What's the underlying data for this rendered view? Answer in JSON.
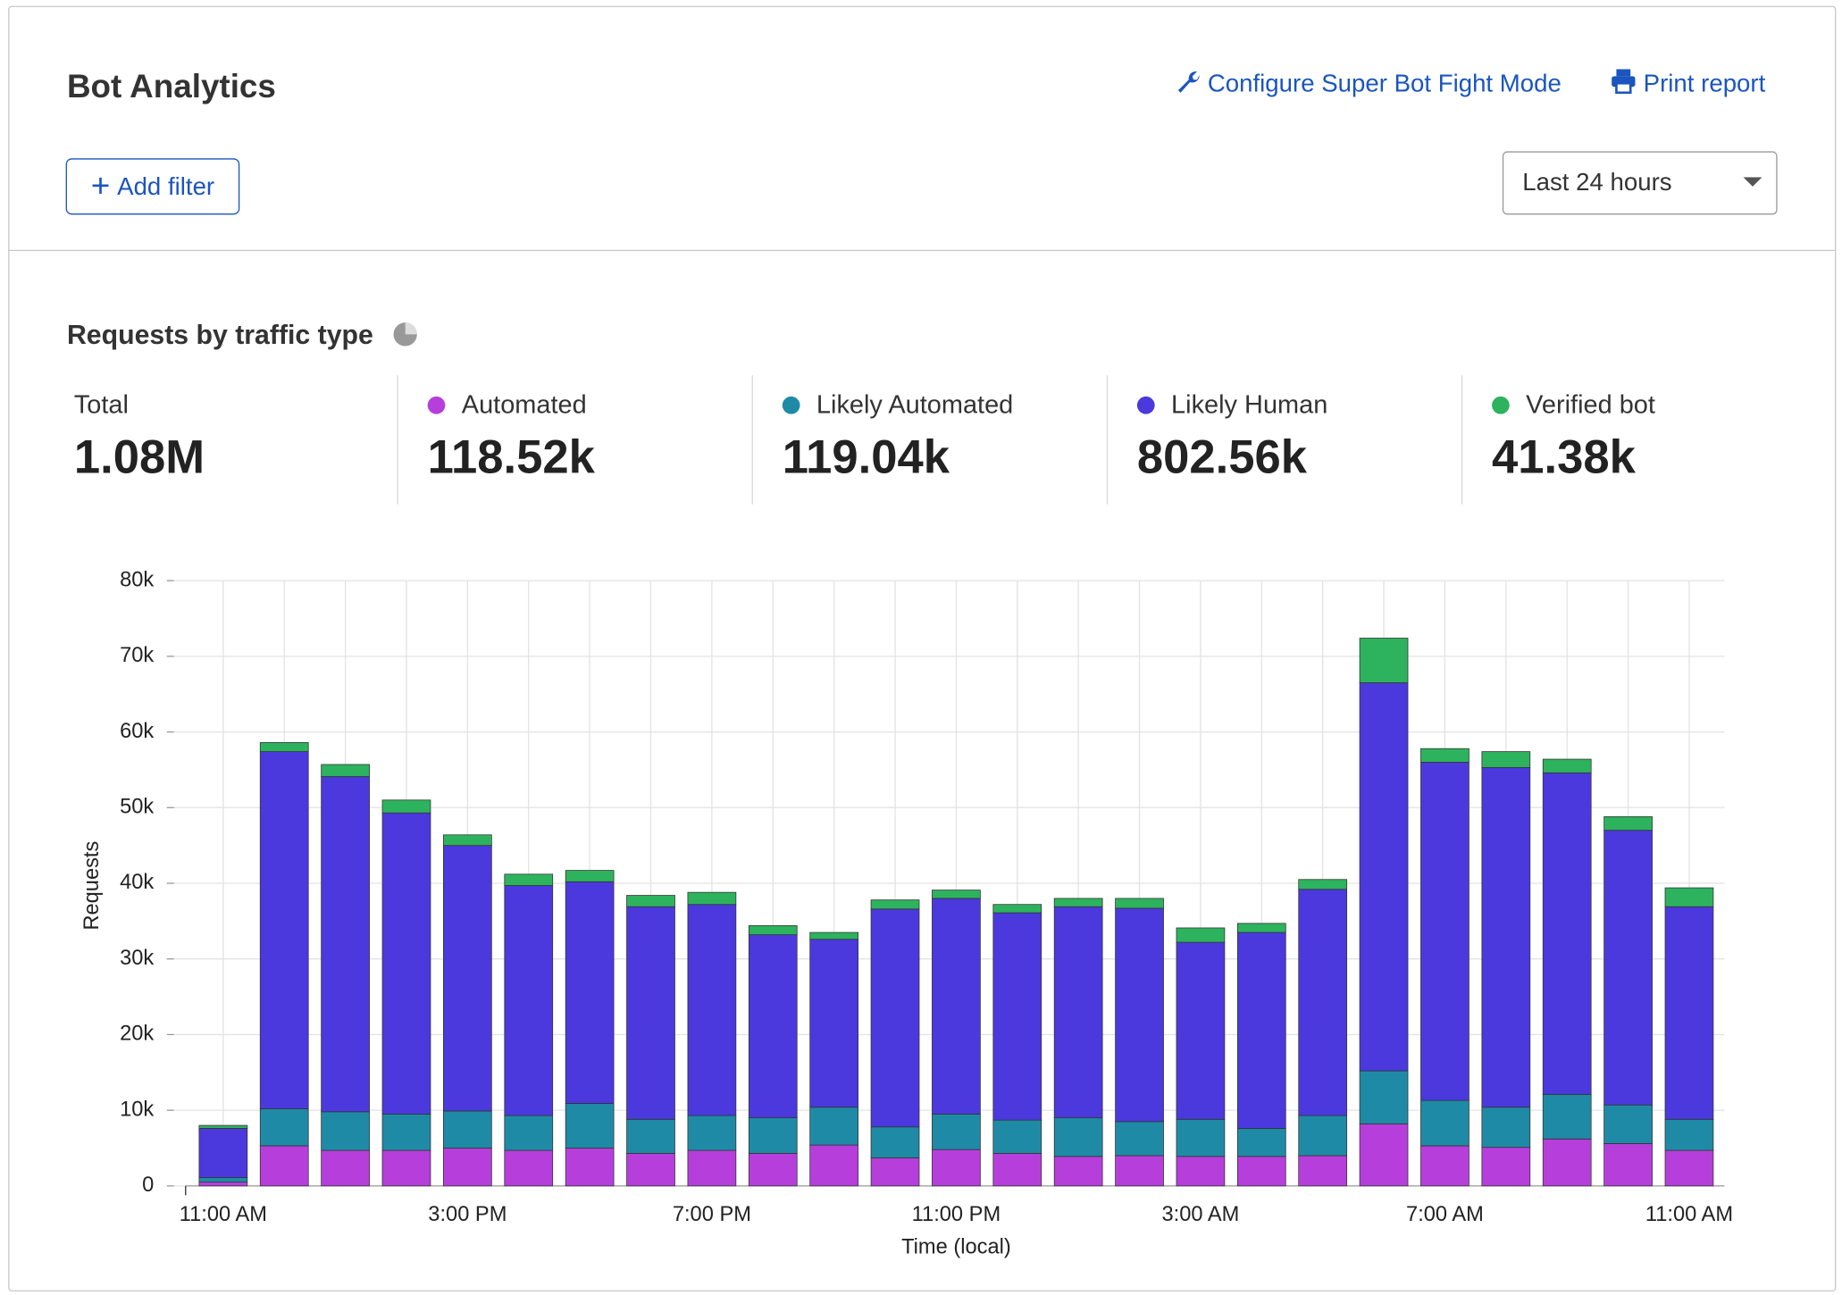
{
  "header": {
    "title": "Bot Analytics",
    "configure_link": "Configure Super Bot Fight Mode",
    "print_link": "Print report",
    "add_filter": "Add filter",
    "time_range": "Last 24 hours"
  },
  "summary": {
    "total_label": "Total",
    "total": "1.08M",
    "series_totals": [
      "118.52k",
      "119.04k",
      "802.56k",
      "41.38k"
    ]
  },
  "chart_data": {
    "type": "stacked_bar",
    "title": "Requests by traffic type",
    "x_label": "Time (local)",
    "y_label": "Requests",
    "categories": [
      "11:00 AM",
      null,
      null,
      null,
      "3:00 PM",
      null,
      null,
      null,
      "7:00 PM",
      null,
      null,
      null,
      "11:00 PM",
      null,
      null,
      null,
      "3:00 AM",
      null,
      null,
      null,
      "7:00 AM",
      null,
      null,
      null,
      "11:00 AM"
    ],
    "series": [
      {
        "name": "Automated",
        "color": "#b63fdc",
        "values": [
          500,
          5300,
          4700,
          4700,
          5000,
          4700,
          5000,
          4300,
          4700,
          4300,
          5400,
          3700,
          4800,
          4300,
          3900,
          4000,
          3900,
          3900,
          4000,
          8200,
          5300,
          5100,
          6200,
          5600,
          4700
        ]
      },
      {
        "name": "Likely Automated",
        "color": "#1f8aa6",
        "values": [
          600,
          4900,
          5100,
          4800,
          4900,
          4600,
          5900,
          4500,
          4600,
          4700,
          5000,
          4100,
          4700,
          4400,
          5100,
          4500,
          4900,
          3700,
          5300,
          7000,
          6000,
          5300,
          5900,
          5100,
          4100
        ]
      },
      {
        "name": "Likely Human",
        "color": "#4b39de",
        "values": [
          6500,
          47200,
          44300,
          39800,
          35100,
          30400,
          29300,
          28100,
          27900,
          24200,
          22200,
          28800,
          28500,
          27400,
          27900,
          28200,
          23400,
          25900,
          29900,
          51300,
          44700,
          44900,
          42500,
          36300,
          28100
        ]
      },
      {
        "name": "Verified bot",
        "color": "#2db35d",
        "values": [
          400,
          1200,
          1600,
          1700,
          1400,
          1500,
          1500,
          1500,
          1600,
          1200,
          900,
          1200,
          1100,
          1100,
          1100,
          1300,
          1900,
          1200,
          1300,
          5900,
          1800,
          2100,
          1800,
          1800,
          2500
        ]
      }
    ],
    "ylim": [
      0,
      80000
    ],
    "yticks": [
      0,
      {
        "value": 10000,
        "label": "10k"
      },
      {
        "value": 20000,
        "label": "20k"
      },
      {
        "value": 30000,
        "label": "30k"
      },
      {
        "value": 40000,
        "label": "40k"
      },
      {
        "value": 50000,
        "label": "50k"
      },
      {
        "value": 60000,
        "label": "60k"
      },
      {
        "value": 70000,
        "label": "70k"
      },
      {
        "value": 80000,
        "label": "80k"
      }
    ],
    "grid": true
  }
}
